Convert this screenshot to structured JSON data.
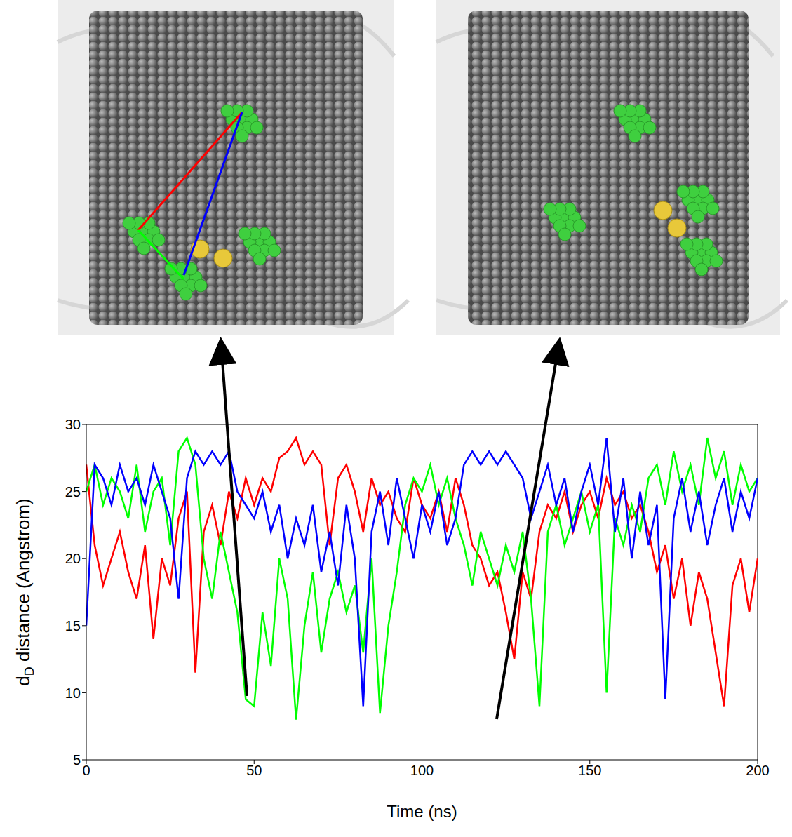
{
  "chart_data": {
    "type": "line",
    "ylabel": "dD distance (Angstrom)",
    "xlabel": "Time (ns)",
    "xlim": [
      0,
      200
    ],
    "xticks": [
      0,
      50,
      100,
      150,
      200
    ],
    "ylim": [
      5,
      30
    ],
    "yticks": [
      5,
      10,
      15,
      20,
      25,
      30
    ],
    "grid": false,
    "x": [
      0,
      2.5,
      5,
      7.5,
      10,
      12.5,
      15,
      17.5,
      20,
      22.5,
      25,
      27.5,
      30,
      32.5,
      35,
      37.5,
      40,
      42.5,
      45,
      47.5,
      50,
      52.5,
      55,
      57.5,
      60,
      62.5,
      65,
      67.5,
      70,
      72.5,
      75,
      77.5,
      80,
      82.5,
      85,
      87.5,
      90,
      92.5,
      95,
      97.5,
      100,
      102.5,
      105,
      107.5,
      110,
      112.5,
      115,
      117.5,
      120,
      122.5,
      125,
      127.5,
      130,
      132.5,
      135,
      137.5,
      140,
      142.5,
      145,
      147.5,
      150,
      152.5,
      155,
      157.5,
      160,
      162.5,
      165,
      167.5,
      170,
      172.5,
      175,
      177.5,
      180,
      182.5,
      185,
      187.5,
      190,
      192.5,
      195,
      197.5,
      200
    ],
    "series": [
      {
        "color": "#ff0000",
        "values": [
          27,
          21,
          18,
          20,
          22,
          19,
          17,
          21,
          14,
          20,
          18,
          23,
          25,
          11.5,
          22,
          24,
          21,
          25,
          23,
          26,
          24,
          26,
          25,
          27.5,
          28,
          29,
          27,
          28,
          27,
          21,
          26,
          27,
          25,
          22,
          26,
          24,
          25,
          23,
          22,
          26,
          24,
          23,
          25,
          22,
          26,
          24,
          21,
          20,
          18,
          19,
          16,
          12.5,
          19,
          17,
          22,
          24,
          23,
          25,
          22,
          24,
          25,
          23,
          26,
          24,
          25,
          23,
          24,
          22,
          19,
          21,
          17,
          20,
          15,
          19,
          17,
          13,
          9,
          18,
          20,
          16,
          20
        ]
      },
      {
        "color": "#00ff00",
        "values": [
          25,
          27,
          24,
          26,
          25,
          23,
          27,
          22,
          25,
          26,
          21,
          28,
          29,
          27,
          20,
          17,
          22,
          19,
          16,
          9.5,
          9,
          16,
          12,
          20,
          17,
          8,
          15,
          19,
          13,
          17,
          19,
          16,
          18,
          13,
          20,
          8.5,
          15,
          19,
          24,
          26,
          25,
          27,
          24,
          26,
          23,
          21,
          18,
          22,
          20,
          18,
          21,
          19,
          22,
          17,
          9,
          22,
          24,
          21,
          23,
          25,
          22,
          24,
          10,
          23,
          21,
          24,
          22,
          26,
          27,
          24,
          28,
          25,
          27,
          24,
          29,
          26,
          28,
          24,
          27,
          25,
          26
        ]
      },
      {
        "color": "#0000ff",
        "values": [
          15,
          27,
          26,
          24,
          27,
          25,
          26,
          24,
          27,
          25,
          23,
          17,
          26,
          28,
          27,
          28,
          27,
          28,
          25,
          24,
          23,
          25,
          22,
          24,
          20,
          23,
          21,
          24,
          19,
          22,
          18,
          24,
          20,
          9,
          22,
          25,
          21,
          26,
          23,
          20,
          24,
          22,
          25,
          21,
          23,
          27,
          28,
          27,
          28,
          27,
          28,
          27,
          26,
          23,
          25,
          27,
          24,
          26,
          22,
          25,
          27,
          24,
          29,
          22,
          26,
          20,
          25,
          21,
          24,
          9.5,
          23,
          26,
          22,
          25,
          21,
          24,
          26,
          22,
          25,
          23,
          26
        ]
      }
    ]
  }
}
